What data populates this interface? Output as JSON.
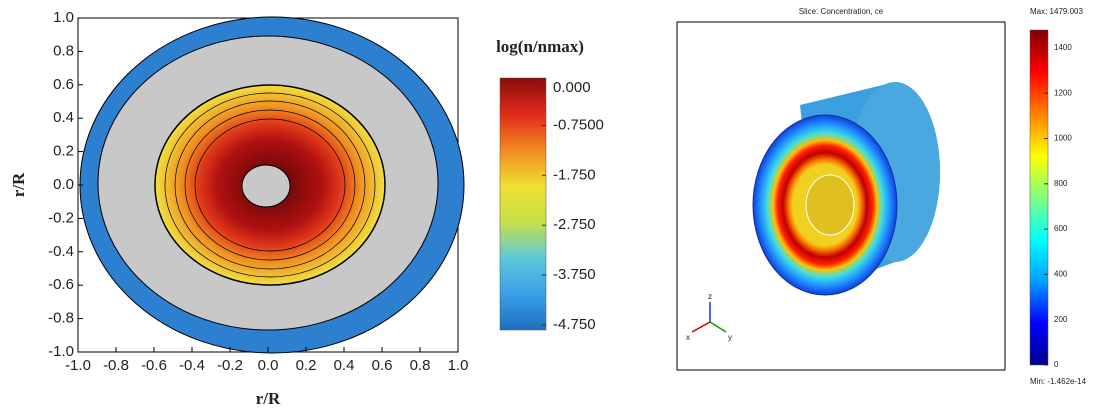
{
  "chart_data": [
    {
      "type": "contour",
      "x_label": "r/R",
      "y_label": "r/R",
      "xlim": [
        -1,
        1
      ],
      "ylim": [
        -1,
        1
      ],
      "xticks": [
        {
          "value": -1,
          "label": "-1.0"
        },
        -0.8,
        -0.6,
        -0.4,
        -0.2,
        {
          "value": 0,
          "label": "0.0"
        },
        0.2,
        0.4,
        0.6,
        0.8,
        {
          "value": 1,
          "label": "1.0"
        }
      ],
      "yticks": [
        {
          "value": -1,
          "label": "-1.0"
        },
        -0.8,
        -0.6,
        -0.4,
        -0.2,
        {
          "value": 0,
          "label": "0.0"
        },
        0.2,
        0.4,
        0.6,
        0.8,
        {
          "value": 1,
          "label": "1.0"
        }
      ],
      "colorbar": {
        "title": "log(n/nmax)",
        "lim": [
          -4.85,
          0.2
        ],
        "ticks": [
          {
            "value": 0,
            "label": "0.000"
          },
          {
            "value": -0.75,
            "label": "-0.7500"
          },
          {
            "value": -1.75,
            "label": "-1.750"
          },
          {
            "value": -2.75,
            "label": "-2.750"
          },
          {
            "value": -3.75,
            "label": "-3.750"
          },
          {
            "value": -4.75,
            "label": "-4.750"
          }
        ],
        "colors": [
          "#1f6fc0",
          "#3aa0e8",
          "#5ec8d8",
          "#c6e04a",
          "#f0e030",
          "#f08a20",
          "#e02a1a",
          "#8b0c0c"
        ]
      }
    },
    {
      "type": "surface",
      "title": "Slice: Concentration, ce",
      "max_label": "Max: 1479.003",
      "min_label": "Min: -1.462e-14",
      "axes": [
        "x",
        "y",
        "z"
      ],
      "colorbar": {
        "lim": [
          0,
          1479.003
        ],
        "ticks": [
          0,
          200,
          400,
          600,
          800,
          1000,
          1200,
          1400
        ],
        "colors": [
          "#00008b",
          "#0000ff",
          "#00a0ff",
          "#00ffff",
          "#80ff80",
          "#ffff00",
          "#ff8000",
          "#ff0000",
          "#800000"
        ]
      }
    }
  ]
}
